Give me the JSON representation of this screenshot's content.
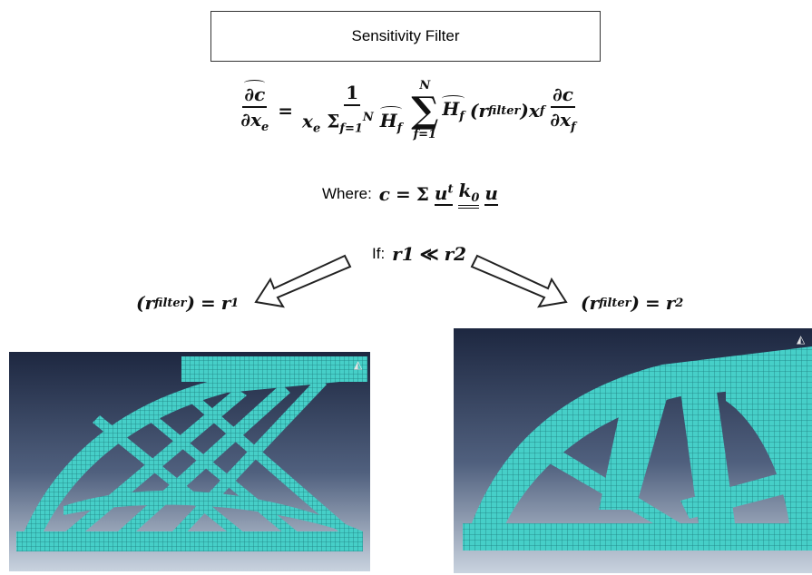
{
  "title": "Sensitivity Filter",
  "equation": {
    "lhs_numerator": "∂c",
    "lhs_denominator": "∂x",
    "lhs_denominator_sub": "e",
    "equals": "=",
    "coef_numerator": "1",
    "coef_x": "x",
    "coef_x_sub": "e",
    "coef_sum": "Σ",
    "coef_sum_sup": "N",
    "coef_sum_sub": "f=1",
    "coef_h": "H",
    "coef_h_sub": "f",
    "sum": "∑",
    "sum_sup": "N",
    "sum_sub": "f=1",
    "term_h": "H",
    "term_h_sub": "f",
    "term_r": "(r",
    "term_r_sub": "filter",
    "term_r_close": ")",
    "term_x": "x",
    "term_x_sub": "f",
    "rhs_numerator": "∂c",
    "rhs_denominator": "∂x",
    "rhs_denominator_sub": "f"
  },
  "where": {
    "label": "Where:",
    "c": "c",
    "equals": "=",
    "sum": "Σ",
    "u1": "u",
    "u1_sup": "t",
    "k": "k",
    "k_sub": "0",
    "u2": "u"
  },
  "condition": {
    "label": "If:",
    "r1": "r",
    "r1_sub": "1",
    "relation": "≪",
    "r2": "r",
    "r2_sub": "2"
  },
  "left_result": {
    "open": "(r",
    "sub": "filter",
    "close": ")",
    "equals": "=",
    "r": "r",
    "r_sub": "1"
  },
  "right_result": {
    "open": "(r",
    "sub": "filter",
    "close": ")",
    "equals": "=",
    "r": "r",
    "r_sub": "2"
  }
}
